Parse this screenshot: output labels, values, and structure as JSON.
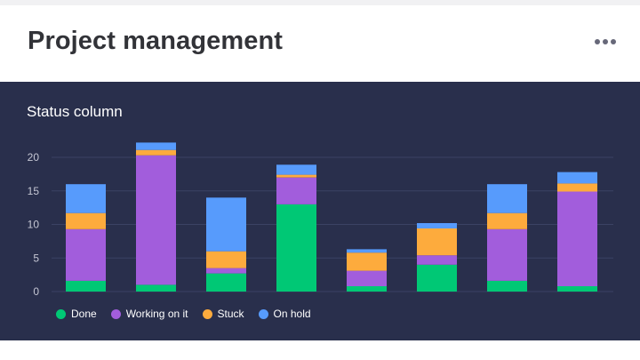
{
  "header": {
    "title": "Project management",
    "menu_icon": "more-horizontal-icon"
  },
  "chart_data": {
    "type": "bar",
    "stacked": true,
    "title": "Status column",
    "xlabel": "",
    "ylabel": "",
    "ylim": [
      0,
      22
    ],
    "yticks": [
      0,
      5,
      10,
      15,
      20
    ],
    "categories": [
      "",
      "",
      "",
      "",
      "",
      "",
      "",
      ""
    ],
    "series": [
      {
        "name": "Done",
        "color": "#00c875",
        "values": [
          1.6,
          1.0,
          2.7,
          13.0,
          0.8,
          4.0,
          1.6,
          0.8
        ]
      },
      {
        "name": "Working on it",
        "color": "#a25ddc",
        "values": [
          7.7,
          19.3,
          0.8,
          4.0,
          2.3,
          1.4,
          7.7,
          14.1
        ]
      },
      {
        "name": "Stuck",
        "color": "#fdab3d",
        "values": [
          2.4,
          0.8,
          2.5,
          0.4,
          2.7,
          4.0,
          2.4,
          1.2
        ]
      },
      {
        "name": "On hold",
        "color": "#579bfc",
        "values": [
          4.3,
          1.1,
          8.0,
          1.5,
          0.5,
          0.8,
          4.3,
          1.7
        ]
      }
    ],
    "grid": true,
    "legend": "bottom-left"
  }
}
